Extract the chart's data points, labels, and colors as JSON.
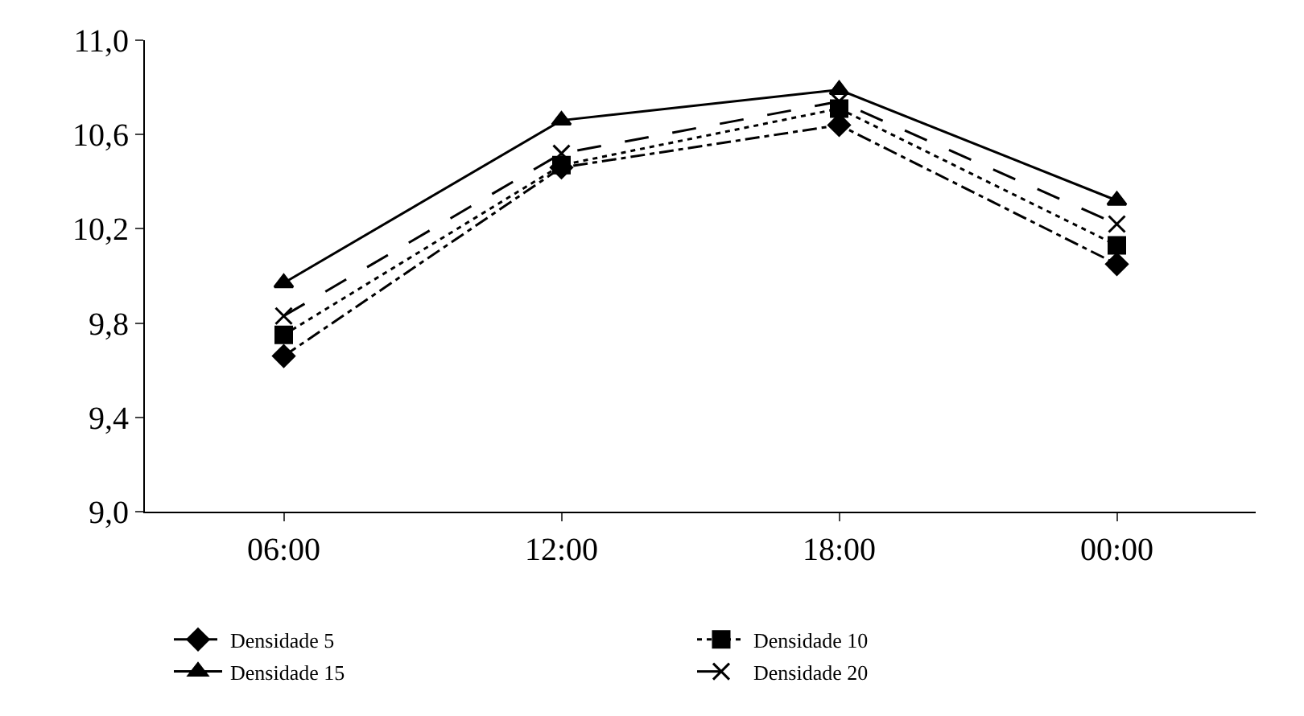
{
  "chart_data": {
    "type": "line",
    "categories": [
      "06:00",
      "12:00",
      "18:00",
      "00:00"
    ],
    "series": [
      {
        "name": "Densidade 5",
        "color": "#000000",
        "marker": "diamond",
        "line_style": "dashdot",
        "values": [
          9.66,
          10.46,
          10.64,
          10.05
        ]
      },
      {
        "name": "Densidade 10",
        "color": "#000000",
        "marker": "square",
        "line_style": "dotted",
        "values": [
          9.75,
          10.47,
          10.71,
          10.13
        ]
      },
      {
        "name": "Densidade 15",
        "color": "#000000",
        "marker": "triangle",
        "line_style": "solid",
        "values": [
          9.97,
          10.66,
          10.79,
          10.32
        ]
      },
      {
        "name": "Densidade 20",
        "color": "#000000",
        "marker": "cross",
        "line_style": "dashed",
        "values": [
          9.83,
          10.52,
          10.74,
          10.22
        ]
      }
    ],
    "ylim": [
      9.0,
      11.0
    ],
    "yticks": [
      {
        "value": 9.0,
        "label": "9,0"
      },
      {
        "value": 9.4,
        "label": "9,4"
      },
      {
        "value": 9.8,
        "label": "9,8"
      },
      {
        "value": 10.2,
        "label": "10,2"
      },
      {
        "value": 10.6,
        "label": "10,6"
      },
      {
        "value": 11.0,
        "label": "11,0"
      }
    ],
    "legend": "bottom"
  }
}
